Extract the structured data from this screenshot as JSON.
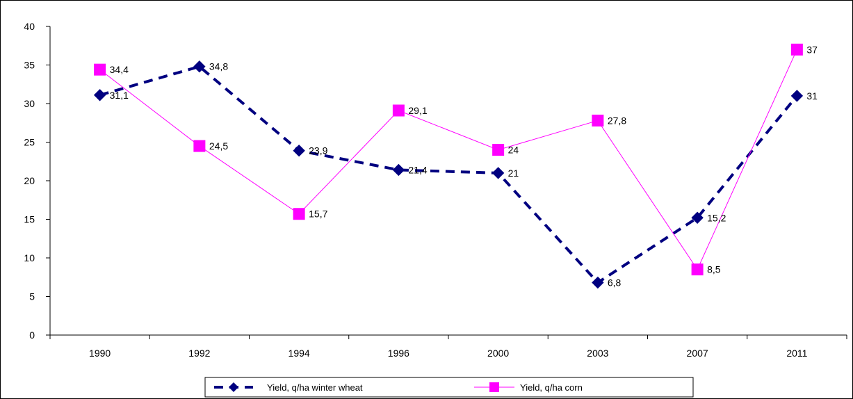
{
  "chart_data": {
    "type": "line",
    "categories": [
      "1990",
      "1992",
      "1994",
      "1996",
      "2000",
      "2003",
      "2007",
      "2011"
    ],
    "ylim": [
      0,
      40
    ],
    "yticks": [
      0,
      5,
      10,
      15,
      20,
      25,
      30,
      35,
      40
    ],
    "ytick_labels": [
      "0",
      "5",
      "10",
      "15",
      "20",
      "25",
      "30",
      "35",
      "40"
    ],
    "grid": false,
    "legend_position": "bottom",
    "series": [
      {
        "name": "Yield, q/ha winter wheat",
        "values": [
          31.1,
          34.8,
          23.9,
          21.4,
          21,
          6.8,
          15.2,
          31
        ],
        "labels": [
          "31,1",
          "34,8",
          "23,9",
          "21,4",
          "21",
          "6,8",
          "15,2",
          "31"
        ],
        "color": "#000080",
        "marker": "diamond",
        "line_style": "dashed"
      },
      {
        "name": "Yield, q/ha corn",
        "values": [
          34.4,
          24.5,
          15.7,
          29.1,
          24,
          27.8,
          8.5,
          37
        ],
        "labels": [
          "34,4",
          "24,5",
          "15,7",
          "29,1",
          "24",
          "27,8",
          "8,5",
          "37"
        ],
        "color": "#FF00FF",
        "marker": "square",
        "line_style": "solid"
      }
    ]
  }
}
